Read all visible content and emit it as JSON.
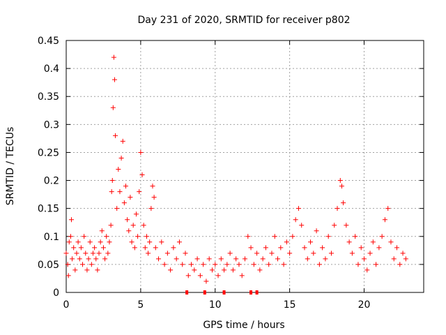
{
  "chart_data": {
    "type": "scatter",
    "title": "Day 231 of 2020, SRMTID for receiver p802",
    "xlabel": "GPS time / hours",
    "ylabel": "SRMTID / TECUs",
    "xlim": [
      0,
      24
    ],
    "ylim": [
      0,
      0.45
    ],
    "x_ticks": [
      0,
      5,
      10,
      15,
      20
    ],
    "y_ticks": [
      0,
      0.05,
      0.1,
      0.15,
      0.2,
      0.25,
      0.3,
      0.35,
      0.4,
      0.45
    ],
    "x_tick_labels": [
      "0",
      "5",
      "10",
      "15",
      "20"
    ],
    "y_tick_labels": [
      "0",
      "0.05",
      "0.1",
      "0.15",
      "0.2",
      "0.25",
      "0.3",
      "0.35",
      "0.4",
      "0.45"
    ],
    "grid": true,
    "marker": "+",
    "color": "#ff0000",
    "series": [
      {
        "name": "SRMTID",
        "points": [
          [
            0.0,
            0.07
          ],
          [
            0.1,
            0.05
          ],
          [
            0.15,
            0.03
          ],
          [
            0.2,
            0.09
          ],
          [
            0.3,
            0.1
          ],
          [
            0.35,
            0.13
          ],
          [
            0.4,
            0.06
          ],
          [
            0.5,
            0.08
          ],
          [
            0.6,
            0.04
          ],
          [
            0.7,
            0.07
          ],
          [
            0.8,
            0.09
          ],
          [
            0.9,
            0.06
          ],
          [
            1.0,
            0.08
          ],
          [
            1.1,
            0.05
          ],
          [
            1.2,
            0.1
          ],
          [
            1.3,
            0.07
          ],
          [
            1.4,
            0.04
          ],
          [
            1.5,
            0.06
          ],
          [
            1.6,
            0.09
          ],
          [
            1.7,
            0.05
          ],
          [
            1.8,
            0.07
          ],
          [
            1.9,
            0.08
          ],
          [
            2.0,
            0.06
          ],
          [
            2.1,
            0.04
          ],
          [
            2.2,
            0.07
          ],
          [
            2.3,
            0.09
          ],
          [
            2.4,
            0.11
          ],
          [
            2.5,
            0.08
          ],
          [
            2.6,
            0.06
          ],
          [
            2.7,
            0.1
          ],
          [
            2.8,
            0.07
          ],
          [
            2.9,
            0.09
          ],
          [
            3.0,
            0.12
          ],
          [
            3.05,
            0.18
          ],
          [
            3.1,
            0.2
          ],
          [
            3.15,
            0.33
          ],
          [
            3.2,
            0.42
          ],
          [
            3.25,
            0.38
          ],
          [
            3.3,
            0.28
          ],
          [
            3.4,
            0.15
          ],
          [
            3.5,
            0.22
          ],
          [
            3.6,
            0.18
          ],
          [
            3.7,
            0.24
          ],
          [
            3.8,
            0.27
          ],
          [
            3.9,
            0.16
          ],
          [
            4.0,
            0.19
          ],
          [
            4.1,
            0.13
          ],
          [
            4.2,
            0.11
          ],
          [
            4.3,
            0.17
          ],
          [
            4.4,
            0.09
          ],
          [
            4.5,
            0.12
          ],
          [
            4.6,
            0.08
          ],
          [
            4.7,
            0.14
          ],
          [
            4.8,
            0.1
          ],
          [
            4.9,
            0.18
          ],
          [
            5.0,
            0.25
          ],
          [
            5.1,
            0.21
          ],
          [
            5.2,
            0.12
          ],
          [
            5.3,
            0.08
          ],
          [
            5.4,
            0.1
          ],
          [
            5.5,
            0.07
          ],
          [
            5.6,
            0.09
          ],
          [
            5.7,
            0.15
          ],
          [
            5.8,
            0.19
          ],
          [
            5.9,
            0.17
          ],
          [
            6.0,
            0.08
          ],
          [
            6.2,
            0.06
          ],
          [
            6.4,
            0.09
          ],
          [
            6.6,
            0.05
          ],
          [
            6.8,
            0.07
          ],
          [
            7.0,
            0.04
          ],
          [
            7.2,
            0.08
          ],
          [
            7.4,
            0.06
          ],
          [
            7.6,
            0.09
          ],
          [
            7.8,
            0.05
          ],
          [
            8.0,
            0.07
          ],
          [
            8.2,
            0.03
          ],
          [
            8.4,
            0.05
          ],
          [
            8.6,
            0.04
          ],
          [
            8.8,
            0.06
          ],
          [
            9.0,
            0.03
          ],
          [
            9.2,
            0.05
          ],
          [
            9.4,
            0.02
          ],
          [
            9.6,
            0.06
          ],
          [
            9.8,
            0.04
          ],
          [
            10.0,
            0.05
          ],
          [
            10.2,
            0.03
          ],
          [
            10.4,
            0.06
          ],
          [
            10.6,
            0.04
          ],
          [
            10.8,
            0.05
          ],
          [
            11.0,
            0.07
          ],
          [
            11.2,
            0.04
          ],
          [
            11.4,
            0.06
          ],
          [
            11.6,
            0.05
          ],
          [
            11.8,
            0.03
          ],
          [
            12.0,
            0.06
          ],
          [
            12.2,
            0.1
          ],
          [
            12.4,
            0.08
          ],
          [
            12.6,
            0.05
          ],
          [
            12.8,
            0.07
          ],
          [
            13.0,
            0.04
          ],
          [
            13.2,
            0.06
          ],
          [
            13.4,
            0.08
          ],
          [
            13.6,
            0.05
          ],
          [
            13.8,
            0.07
          ],
          [
            14.0,
            0.1
          ],
          [
            14.2,
            0.06
          ],
          [
            14.4,
            0.08
          ],
          [
            14.6,
            0.05
          ],
          [
            14.8,
            0.09
          ],
          [
            15.0,
            0.07
          ],
          [
            15.2,
            0.1
          ],
          [
            15.4,
            0.13
          ],
          [
            15.6,
            0.15
          ],
          [
            15.8,
            0.12
          ],
          [
            16.0,
            0.08
          ],
          [
            16.2,
            0.06
          ],
          [
            16.4,
            0.09
          ],
          [
            16.6,
            0.07
          ],
          [
            16.8,
            0.11
          ],
          [
            17.0,
            0.05
          ],
          [
            17.2,
            0.08
          ],
          [
            17.4,
            0.06
          ],
          [
            17.6,
            0.1
          ],
          [
            17.8,
            0.07
          ],
          [
            18.0,
            0.12
          ],
          [
            18.2,
            0.15
          ],
          [
            18.4,
            0.2
          ],
          [
            18.5,
            0.19
          ],
          [
            18.6,
            0.16
          ],
          [
            18.8,
            0.12
          ],
          [
            19.0,
            0.09
          ],
          [
            19.2,
            0.07
          ],
          [
            19.4,
            0.1
          ],
          [
            19.6,
            0.05
          ],
          [
            19.8,
            0.08
          ],
          [
            20.0,
            0.06
          ],
          [
            20.2,
            0.04
          ],
          [
            20.4,
            0.07
          ],
          [
            20.6,
            0.09
          ],
          [
            20.8,
            0.05
          ],
          [
            21.0,
            0.08
          ],
          [
            21.2,
            0.1
          ],
          [
            21.4,
            0.13
          ],
          [
            21.6,
            0.15
          ],
          [
            21.8,
            0.09
          ],
          [
            22.0,
            0.06
          ],
          [
            22.2,
            0.08
          ],
          [
            22.4,
            0.05
          ],
          [
            22.6,
            0.07
          ],
          [
            22.8,
            0.06
          ]
        ]
      }
    ],
    "gap_markers_x": [
      8.1,
      9.3,
      10.6,
      12.4,
      12.8
    ]
  }
}
